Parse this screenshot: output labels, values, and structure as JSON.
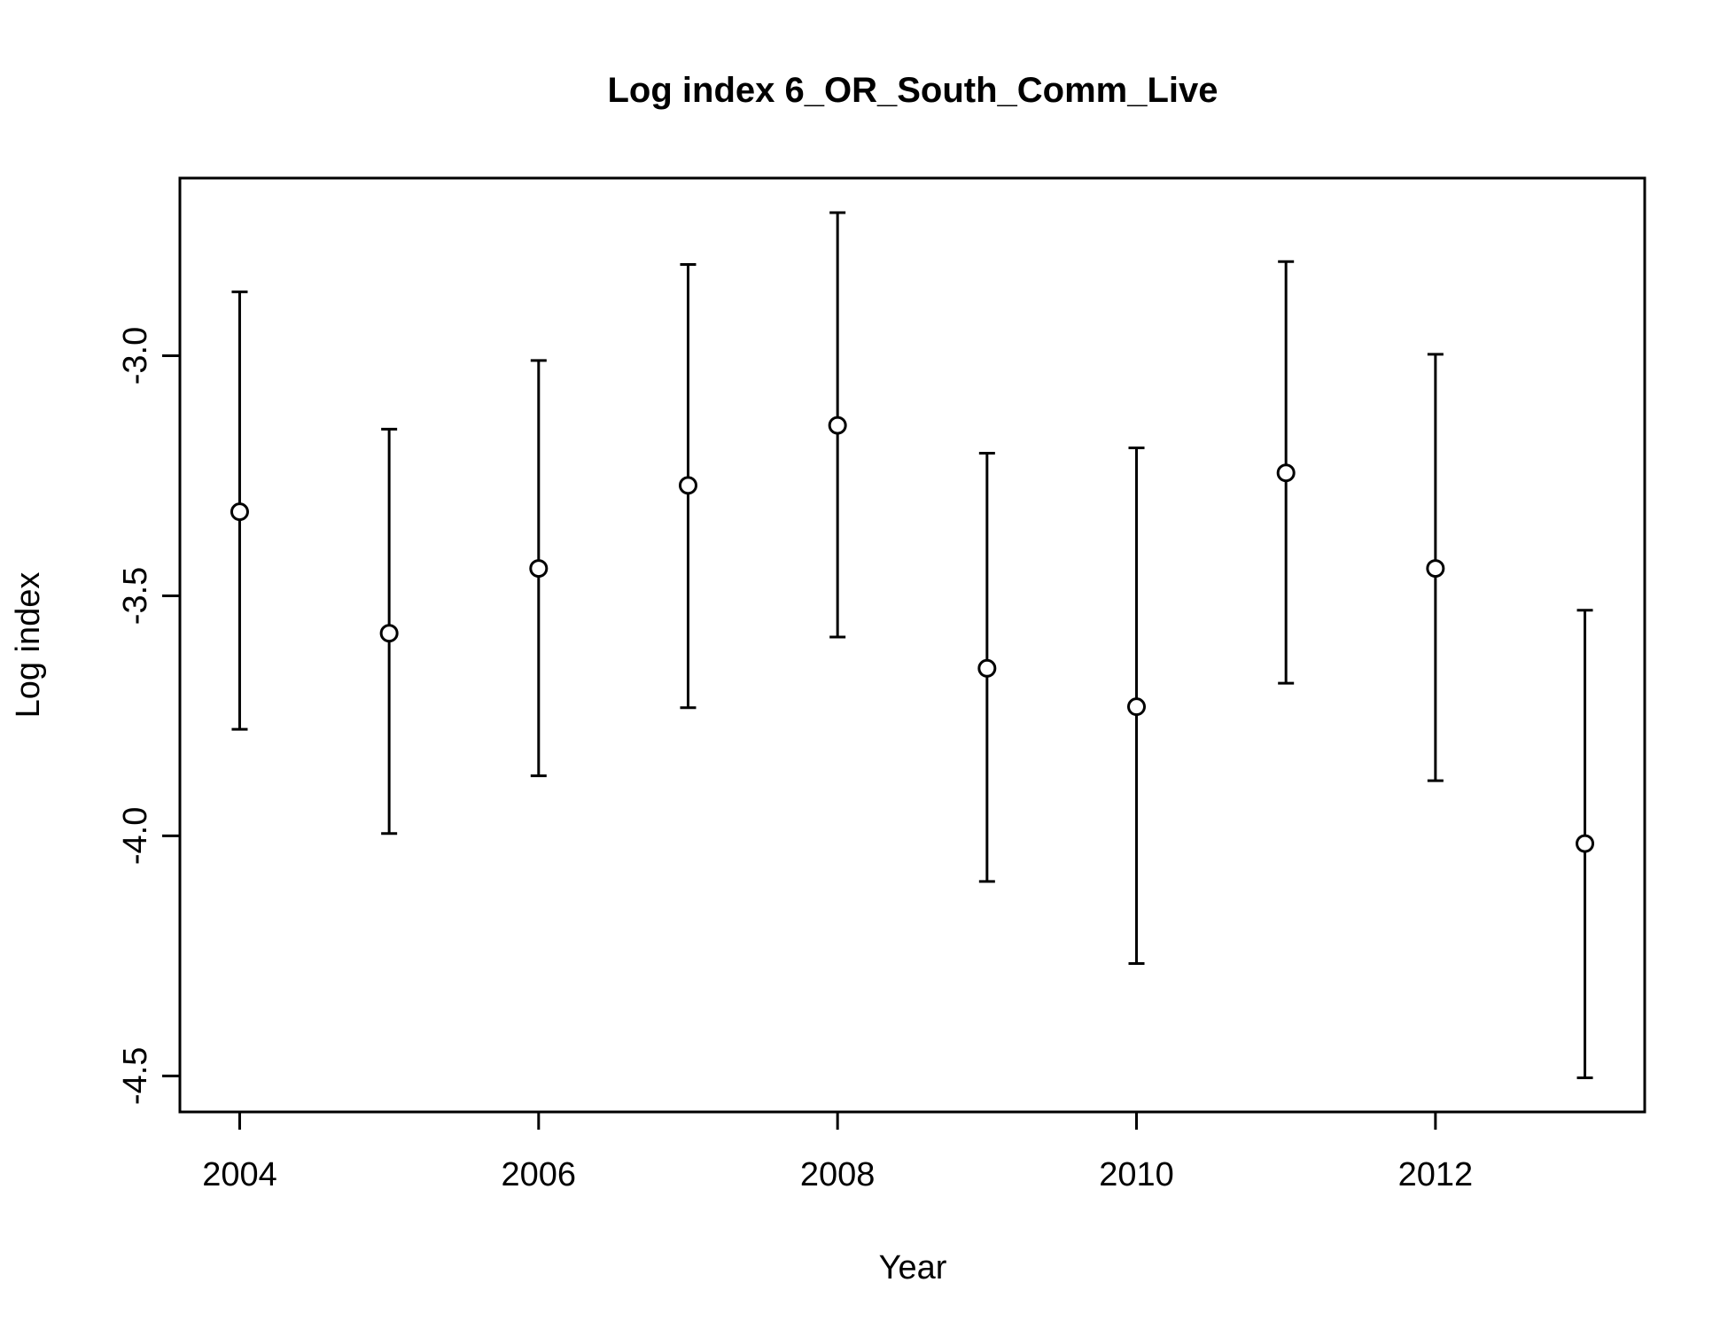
{
  "chart_data": {
    "type": "scatter",
    "title": "Log index 6_OR_South_Comm_Live",
    "xlabel": "Year",
    "ylabel": "Log index",
    "xlim": [
      2003.6,
      2013.4
    ],
    "ylim": [
      -4.575,
      -2.63
    ],
    "x_ticks": [
      2004,
      2006,
      2008,
      2010,
      2012
    ],
    "x_tick_labels": [
      "2004",
      "2006",
      "2008",
      "2010",
      "2012"
    ],
    "y_ticks": [
      -3.0,
      -3.5,
      -4.0,
      -4.5
    ],
    "y_tick_labels": [
      "-3.0",
      "-3.5",
      "-4.0",
      "-4.5"
    ],
    "grid": false,
    "legend": "none",
    "points": [
      {
        "x": 2004,
        "y": -3.325,
        "lower": -3.778,
        "upper": -2.867
      },
      {
        "x": 2005,
        "y": -3.578,
        "lower": -3.995,
        "upper": -3.153
      },
      {
        "x": 2006,
        "y": -3.443,
        "lower": -3.875,
        "upper": -3.01
      },
      {
        "x": 2007,
        "y": -3.27,
        "lower": -3.733,
        "upper": -2.81
      },
      {
        "x": 2008,
        "y": -3.145,
        "lower": -3.586,
        "upper": -2.702
      },
      {
        "x": 2009,
        "y": -3.651,
        "lower": -4.095,
        "upper": -3.203
      },
      {
        "x": 2010,
        "y": -3.731,
        "lower": -4.266,
        "upper": -3.192
      },
      {
        "x": 2011,
        "y": -3.244,
        "lower": -3.682,
        "upper": -2.804
      },
      {
        "x": 2012,
        "y": -3.443,
        "lower": -3.885,
        "upper": -2.997
      },
      {
        "x": 2013,
        "y": -4.016,
        "lower": -4.504,
        "upper": -3.53
      }
    ]
  }
}
